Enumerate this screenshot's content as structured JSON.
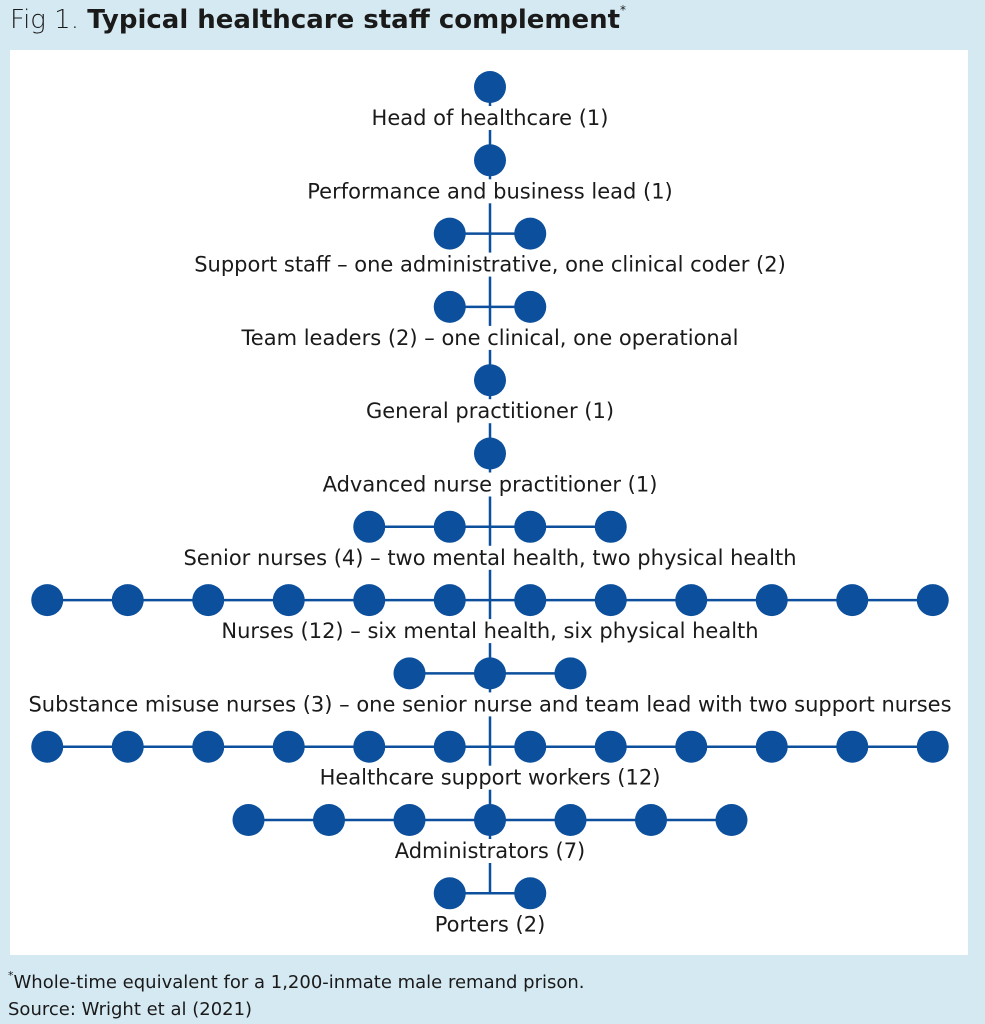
{
  "header": {
    "fig": "Fig 1.",
    "title": "Typical healthcare staff complement",
    "marker": "*"
  },
  "nodes": [
    {
      "label": "Head of healthcare (1)",
      "count": 1
    },
    {
      "label": "Performance and business lead (1)",
      "count": 1
    },
    {
      "label": "Support staff – one administrative, one clinical coder (2)",
      "count": 2
    },
    {
      "label": "Team leaders (2) – one clinical, one operational",
      "count": 2
    },
    {
      "label": "General practitioner (1)",
      "count": 1
    },
    {
      "label": "Advanced nurse practitioner (1)",
      "count": 1
    },
    {
      "label": "Senior nurses (4) – two mental health, two physical health",
      "count": 4
    },
    {
      "label": "Nurses (12) – six mental health, six physical health",
      "count": 12
    },
    {
      "label": "Substance misuse nurses (3) – one senior nurse and team lead with two support nurses",
      "count": 3
    },
    {
      "label": "Healthcare support workers (12)",
      "count": 12
    },
    {
      "label": "Administrators (7)",
      "count": 7
    },
    {
      "label": "Porters (2)",
      "count": 2
    }
  ],
  "footnote": {
    "marker": "*",
    "text": "Whole-time equivalent for a 1,200-inmate male remand prison.",
    "source": "Source: Wright et al (2021)"
  }
}
